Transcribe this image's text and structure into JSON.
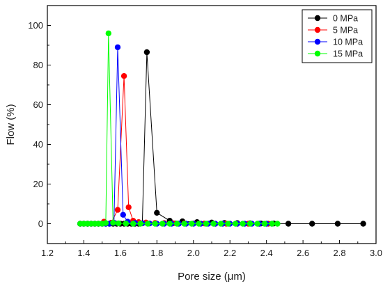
{
  "chart_data": {
    "type": "line",
    "xlabel": "Pore size (μm)",
    "ylabel": "Flow (%)",
    "xlim": [
      1.2,
      3.0
    ],
    "ylim": [
      -10,
      110
    ],
    "xticks": [
      1.2,
      1.4,
      1.6,
      1.8,
      2.0,
      2.2,
      2.4,
      2.6,
      2.8,
      3.0
    ],
    "yticks": [
      0,
      20,
      40,
      60,
      80,
      100
    ],
    "xtick_labels": [
      "1.2",
      "1.4",
      "1.6",
      "1.8",
      "2.0",
      "2.2",
      "2.4",
      "2.6",
      "2.8",
      "3.0"
    ],
    "ytick_labels": [
      "0",
      "20",
      "40",
      "60",
      "80",
      "100"
    ],
    "grid": false,
    "legend_position": "top-right",
    "series": [
      {
        "name": "0 MPa",
        "color": "#000000",
        "points": [
          [
            1.38,
            0
          ],
          [
            1.4,
            0
          ],
          [
            1.42,
            0
          ],
          [
            1.44,
            0
          ],
          [
            1.46,
            0
          ],
          [
            1.48,
            0
          ],
          [
            1.5,
            0
          ],
          [
            1.52,
            0
          ],
          [
            1.54,
            0
          ],
          [
            1.56,
            0
          ],
          [
            1.58,
            0
          ],
          [
            1.6,
            0
          ],
          [
            1.62,
            0
          ],
          [
            1.64,
            0
          ],
          [
            1.66,
            0
          ],
          [
            1.68,
            0
          ],
          [
            1.7,
            0
          ],
          [
            1.72,
            0.2
          ],
          [
            1.745,
            86.5
          ],
          [
            1.8,
            5.5
          ],
          [
            1.87,
            1.5
          ],
          [
            1.94,
            1.2
          ],
          [
            2.02,
            0.8
          ],
          [
            2.1,
            0.6
          ],
          [
            2.17,
            0.4
          ],
          [
            2.24,
            0.3
          ],
          [
            2.31,
            0.2
          ],
          [
            2.37,
            0.1
          ],
          [
            2.44,
            0.1
          ],
          [
            2.52,
            0
          ],
          [
            2.65,
            0
          ],
          [
            2.79,
            0
          ],
          [
            2.93,
            0
          ]
        ]
      },
      {
        "name": "5 MPa",
        "color": "#ff0000",
        "points": [
          [
            1.38,
            0
          ],
          [
            1.4,
            0
          ],
          [
            1.42,
            0
          ],
          [
            1.44,
            0
          ],
          [
            1.46,
            0
          ],
          [
            1.48,
            0
          ],
          [
            1.51,
            1.0
          ],
          [
            1.55,
            0.5
          ],
          [
            1.585,
            7.0
          ],
          [
            1.62,
            74.5
          ],
          [
            1.645,
            8.3
          ],
          [
            1.67,
            1.5
          ],
          [
            1.7,
            0.8
          ],
          [
            1.74,
            0.6
          ],
          [
            1.79,
            0.4
          ],
          [
            1.84,
            0.3
          ],
          [
            1.89,
            0.2
          ],
          [
            1.95,
            0.2
          ],
          [
            2.0,
            0.1
          ],
          [
            2.06,
            0.1
          ],
          [
            2.12,
            0
          ],
          [
            2.18,
            0
          ],
          [
            2.24,
            0
          ],
          [
            2.3,
            0
          ],
          [
            2.36,
            0
          ],
          [
            2.41,
            0
          ]
        ]
      },
      {
        "name": "10 MPa",
        "color": "#0000ff",
        "points": [
          [
            1.38,
            0
          ],
          [
            1.4,
            0
          ],
          [
            1.42,
            0
          ],
          [
            1.44,
            0
          ],
          [
            1.46,
            0
          ],
          [
            1.48,
            0
          ],
          [
            1.5,
            0
          ],
          [
            1.52,
            0
          ],
          [
            1.54,
            0
          ],
          [
            1.565,
            0.5
          ],
          [
            1.585,
            89.0
          ],
          [
            1.615,
            4.5
          ],
          [
            1.64,
            1.0
          ],
          [
            1.68,
            0.4
          ],
          [
            1.72,
            0.2
          ],
          [
            1.76,
            0.1
          ],
          [
            1.8,
            0
          ],
          [
            1.84,
            0
          ],
          [
            1.88,
            0
          ],
          [
            1.92,
            0
          ],
          [
            1.96,
            0
          ],
          [
            2.0,
            0
          ],
          [
            2.04,
            0
          ],
          [
            2.08,
            0
          ],
          [
            2.12,
            0
          ],
          [
            2.16,
            0
          ],
          [
            2.2,
            0
          ],
          [
            2.24,
            0
          ],
          [
            2.28,
            0
          ],
          [
            2.32,
            0
          ],
          [
            2.36,
            0
          ],
          [
            2.4,
            0
          ],
          [
            2.43,
            0
          ]
        ]
      },
      {
        "name": "15 MPa",
        "color": "#00ff00",
        "points": [
          [
            1.38,
            0
          ],
          [
            1.4,
            0
          ],
          [
            1.42,
            0
          ],
          [
            1.44,
            0
          ],
          [
            1.46,
            0
          ],
          [
            1.48,
            0
          ],
          [
            1.5,
            0
          ],
          [
            1.52,
            0.3
          ],
          [
            1.535,
            96.0
          ],
          [
            1.56,
            0.5
          ],
          [
            1.59,
            0.2
          ],
          [
            1.63,
            0.1
          ],
          [
            1.67,
            0
          ],
          [
            1.71,
            0
          ],
          [
            1.75,
            0
          ],
          [
            1.79,
            0
          ],
          [
            1.83,
            0
          ],
          [
            1.87,
            0
          ],
          [
            1.91,
            0
          ],
          [
            1.95,
            0
          ],
          [
            1.99,
            0
          ],
          [
            2.03,
            0
          ],
          [
            2.07,
            0
          ],
          [
            2.11,
            0
          ],
          [
            2.15,
            0
          ],
          [
            2.19,
            0
          ],
          [
            2.23,
            0
          ],
          [
            2.27,
            0
          ],
          [
            2.31,
            0
          ],
          [
            2.35,
            0
          ],
          [
            2.39,
            0
          ],
          [
            2.43,
            0
          ],
          [
            2.46,
            0
          ]
        ]
      }
    ]
  }
}
